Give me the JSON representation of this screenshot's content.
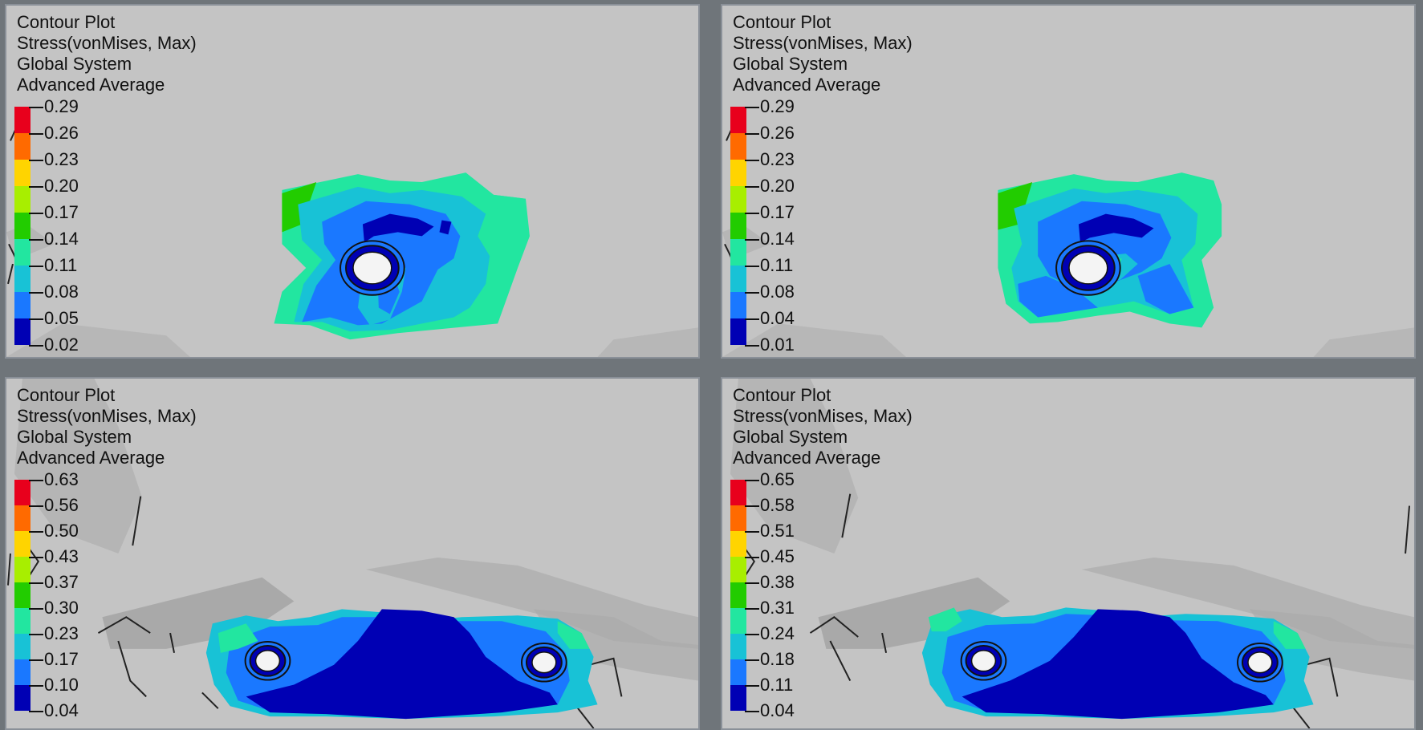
{
  "colors": {
    "background": "#6f757a",
    "viewport": "#c4c4c4",
    "scale": [
      "#e8001c",
      "#ff6a00",
      "#ffd400",
      "#a8ee00",
      "#22cc00",
      "#22e6a0",
      "#18c2d6",
      "#1a78ff",
      "#0000b4"
    ]
  },
  "panels": [
    {
      "id": "panel-top-left",
      "title": "Contour Plot",
      "result_type": "Stress(vonMises, Max)",
      "coordinate_system": "Global System",
      "averaging": "Advanced Average",
      "legend_values": [
        "0.29",
        "0.26",
        "0.23",
        "0.20",
        "0.17",
        "0.14",
        "0.11",
        "0.08",
        "0.05",
        "0.02"
      ],
      "implants": 1
    },
    {
      "id": "panel-top-right",
      "title": "Contour Plot",
      "result_type": "Stress(vonMises, Max)",
      "coordinate_system": "Global System",
      "averaging": "Advanced Average",
      "legend_values": [
        "0.29",
        "0.26",
        "0.23",
        "0.20",
        "0.17",
        "0.14",
        "0.11",
        "0.08",
        "0.04",
        "0.01"
      ],
      "implants": 1
    },
    {
      "id": "panel-bottom-left",
      "title": "Contour Plot",
      "result_type": "Stress(vonMises, Max)",
      "coordinate_system": "Global System",
      "averaging": "Advanced Average",
      "legend_values": [
        "0.63",
        "0.56",
        "0.50",
        "0.43",
        "0.37",
        "0.30",
        "0.23",
        "0.17",
        "0.10",
        "0.04"
      ],
      "implants": 2
    },
    {
      "id": "panel-bottom-right",
      "title": "Contour Plot",
      "result_type": "Stress(vonMises, Max)",
      "coordinate_system": "Global System",
      "averaging": "Advanced Average",
      "legend_values": [
        "0.65",
        "0.58",
        "0.51",
        "0.45",
        "0.38",
        "0.31",
        "0.24",
        "0.18",
        "0.11",
        "0.04"
      ],
      "implants": 2
    }
  ]
}
